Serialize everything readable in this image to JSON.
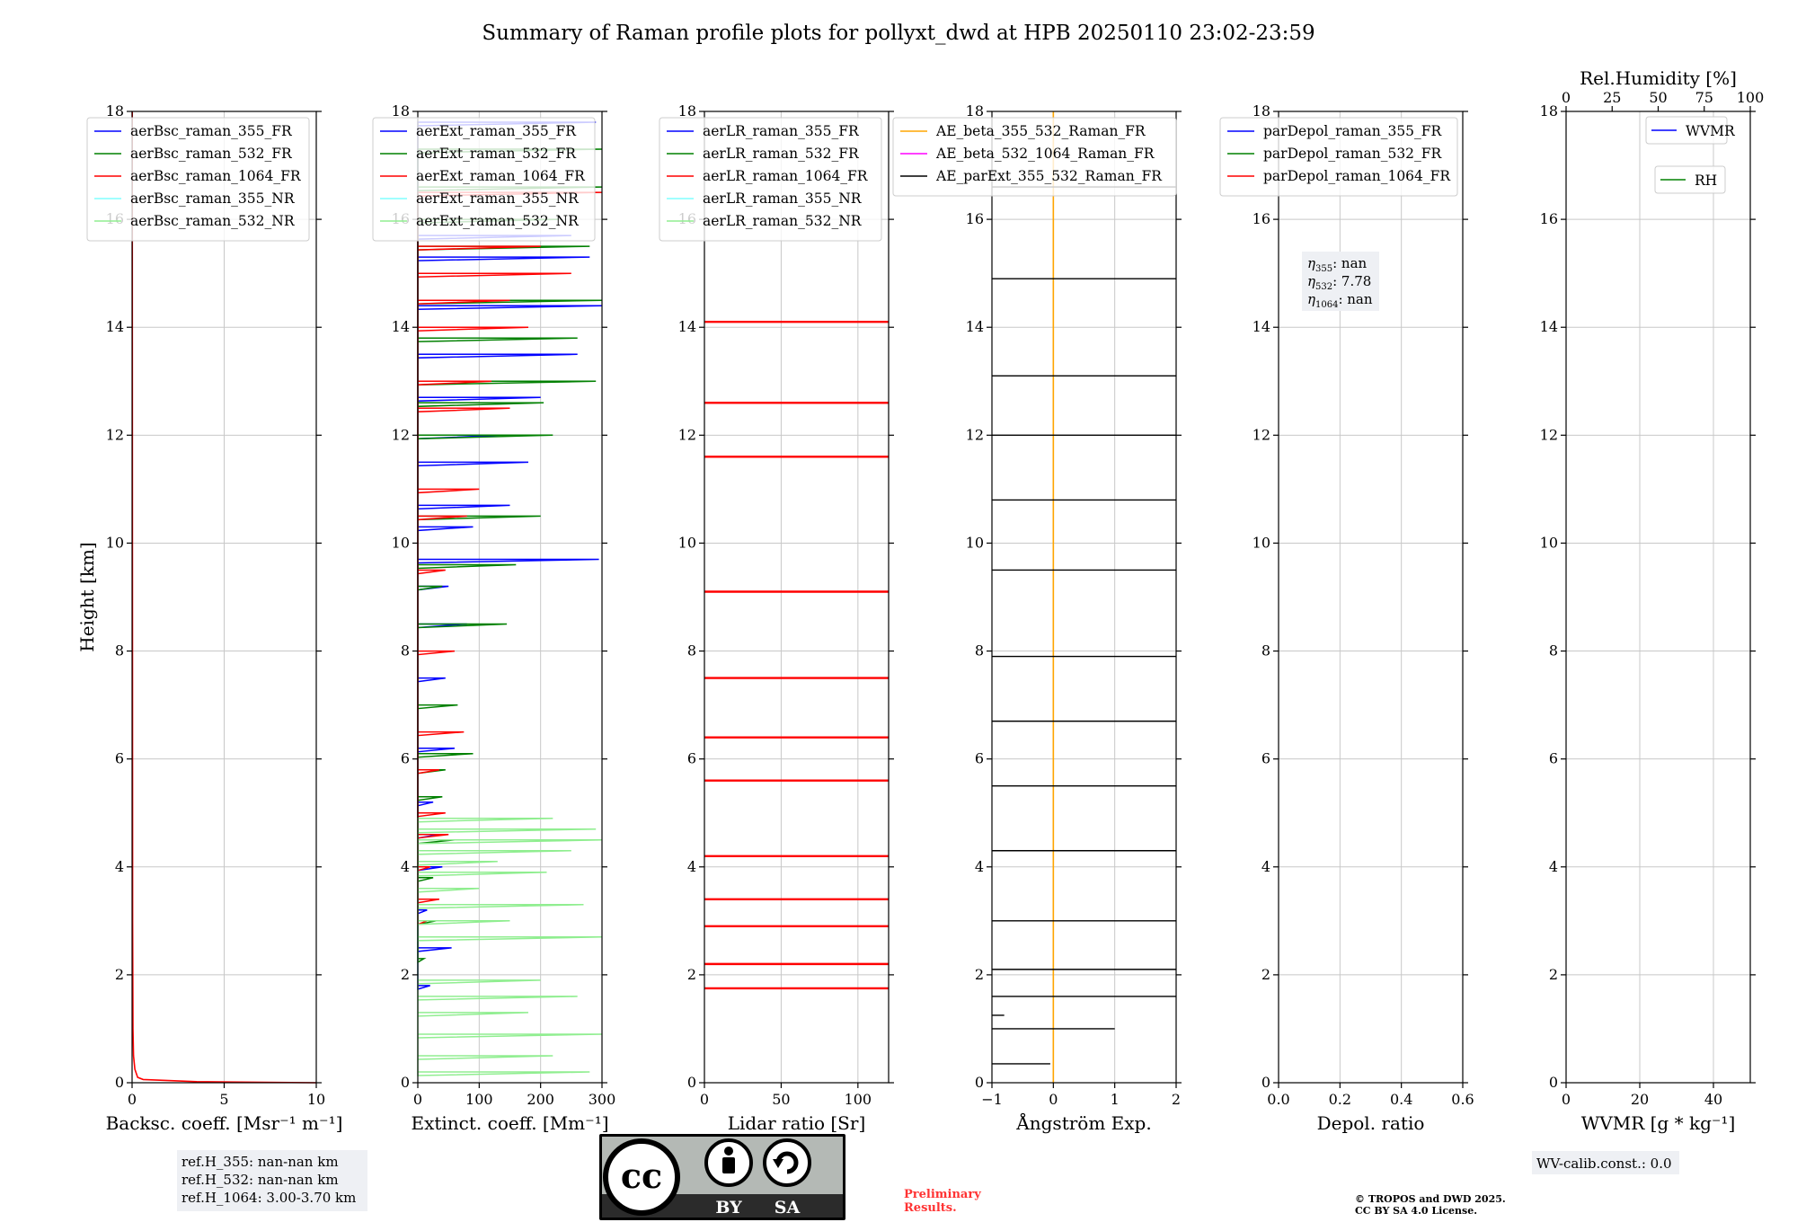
{
  "title": "Summary of Raman profile plots for pollyxt_dwd at HPB 20250110 23:02-23:59",
  "chart_data": [
    {
      "type": "line",
      "xlabel": "Backsc. coeff. [Msr⁻¹ m⁻¹]",
      "ylabel": "Height [km]",
      "xlim": [
        0,
        10
      ],
      "ylim": [
        0,
        18
      ],
      "xticks": [
        "0",
        "5",
        "10"
      ],
      "yticks": [
        "0",
        "2",
        "4",
        "6",
        "8",
        "10",
        "12",
        "14",
        "16",
        "18"
      ],
      "grid": true,
      "legend": "top-left",
      "series": [
        {
          "name": "aerBsc_raman_355_FR",
          "color": "#0000ff"
        },
        {
          "name": "aerBsc_raman_532_FR",
          "color": "#008000"
        },
        {
          "name": "aerBsc_raman_1064_FR",
          "color": "#ff0000",
          "x": [
            10,
            3.5,
            0.6,
            0.3,
            0.15,
            0.08,
            0.05,
            0.03,
            0.02,
            0.01
          ],
          "y": [
            0,
            0.02,
            0.06,
            0.1,
            0.25,
            0.5,
            1.0,
            3.0,
            10.0,
            18.0
          ]
        },
        {
          "name": "aerBsc_raman_355_NR",
          "color": "#80ffff"
        },
        {
          "name": "aerBsc_raman_532_NR",
          "color": "#90ee90"
        }
      ]
    },
    {
      "type": "line",
      "xlabel": "Extinct. coeff. [Mm⁻¹]",
      "xlim": [
        0,
        300
      ],
      "ylim": [
        0,
        18
      ],
      "xticks": [
        "0",
        "100",
        "200",
        "300"
      ],
      "yticks": [
        "0",
        "2",
        "4",
        "6",
        "8",
        "10",
        "12",
        "14",
        "16",
        "18"
      ],
      "grid": true,
      "legend": "top-left",
      "series": [
        {
          "name": "aerExt_raman_355_FR",
          "color": "#0000ff",
          "x": [
            20,
            55,
            15,
            40,
            35,
            25,
            60,
            45,
            80,
            50,
            295,
            90,
            150,
            180,
            140,
            200,
            260,
            300,
            280,
            250,
            290
          ],
          "y": [
            1.8,
            2.5,
            3.2,
            4.0,
            4.6,
            5.2,
            6.2,
            7.5,
            8.5,
            9.2,
            9.7,
            10.3,
            10.7,
            11.5,
            12.0,
            12.7,
            13.5,
            14.4,
            15.3,
            15.7,
            17.8
          ]
        },
        {
          "name": "aerExt_raman_532_FR",
          "color": "#008000",
          "x": [
            10,
            30,
            25,
            60,
            40,
            45,
            90,
            65,
            145,
            40,
            160,
            200,
            220,
            205,
            290,
            260,
            300,
            280,
            230,
            300,
            300
          ],
          "y": [
            2.3,
            3.0,
            3.8,
            4.5,
            5.3,
            5.8,
            6.1,
            7.0,
            8.5,
            9.2,
            9.6,
            10.5,
            12.0,
            12.6,
            13.0,
            13.8,
            14.5,
            15.5,
            16.0,
            16.6,
            17.3
          ]
        },
        {
          "name": "aerExt_raman_1064_FR",
          "color": "#ff0000",
          "x": [
            15,
            35,
            20,
            50,
            45,
            35,
            75,
            60,
            45,
            80,
            100,
            150,
            120,
            180,
            150,
            250,
            200,
            300
          ],
          "y": [
            3.0,
            3.4,
            4.0,
            4.6,
            5.0,
            5.8,
            6.5,
            8.0,
            9.5,
            10.5,
            11.0,
            12.5,
            13.0,
            14.0,
            14.5,
            15.0,
            15.5,
            16.5
          ]
        },
        {
          "name": "aerExt_raman_355_NR",
          "color": "#80ffff"
        },
        {
          "name": "aerExt_raman_532_NR",
          "color": "#90ee90",
          "x": [
            280,
            220,
            300,
            180,
            260,
            200,
            300,
            150,
            270,
            100,
            210,
            130,
            250,
            300,
            290,
            220
          ],
          "y": [
            0.2,
            0.5,
            0.9,
            1.3,
            1.6,
            1.9,
            2.7,
            3.0,
            3.3,
            3.6,
            3.9,
            4.1,
            4.3,
            4.5,
            4.7,
            4.9
          ]
        }
      ]
    },
    {
      "type": "line",
      "xlabel": "Lidar ratio [Sr]",
      "xlim": [
        0,
        120
      ],
      "ylim": [
        0,
        18
      ],
      "xticks": [
        "0",
        "50",
        "100"
      ],
      "yticks": [
        "0",
        "2",
        "4",
        "6",
        "8",
        "10",
        "12",
        "14",
        "16",
        "18"
      ],
      "grid": true,
      "legend": "top-left",
      "series": [
        {
          "name": "aerLR_raman_355_FR",
          "color": "#0000ff"
        },
        {
          "name": "aerLR_raman_532_FR",
          "color": "#008000"
        },
        {
          "name": "aerLR_raman_1064_FR",
          "color": "#ff0000",
          "x": [
            120,
            120,
            120,
            120,
            120,
            120,
            120,
            120,
            120,
            120,
            120,
            120
          ],
          "y": [
            1.75,
            2.2,
            2.9,
            3.4,
            4.2,
            5.6,
            6.4,
            7.5,
            9.1,
            11.6,
            12.6,
            14.1
          ]
        },
        {
          "name": "aerLR_raman_355_NR",
          "color": "#80ffff"
        },
        {
          "name": "aerLR_raman_532_NR",
          "color": "#90ee90"
        }
      ]
    },
    {
      "type": "line",
      "xlabel": "Ångström Exp.",
      "xlim": [
        -1,
        2
      ],
      "ylim": [
        0,
        18
      ],
      "xticks": [
        "−1",
        "0",
        "1",
        "2"
      ],
      "yticks": [
        "0",
        "2",
        "4",
        "6",
        "8",
        "10",
        "12",
        "14",
        "16",
        "18"
      ],
      "grid": true,
      "legend": "top-right",
      "series": [
        {
          "name": "AE_beta_355_532_Raman_FR",
          "color": "#ffa500",
          "x": [
            0,
            0
          ],
          "y": [
            0,
            18
          ]
        },
        {
          "name": "AE_beta_532_1064_Raman_FR",
          "color": "#ff00ff"
        },
        {
          "name": "AE_parExt_355_532_Raman_FR",
          "color": "#000000",
          "x": [
            -0.05,
            1.0,
            -0.8,
            2.0,
            -1.0,
            2.0,
            -1.0,
            2.0,
            -1.0,
            2.0,
            -1.0,
            2.0,
            -1.0,
            2.0,
            -1.0,
            2.0,
            -1.0,
            2.0,
            -1.0,
            2.0,
            -1.0,
            2.0,
            -1.0,
            2.0,
            -1.0,
            2.0,
            -1.0,
            2.0
          ],
          "y": [
            0.35,
            1.0,
            1.25,
            1.6,
            1.8,
            2.1,
            2.4,
            3.0,
            3.5,
            4.3,
            5.0,
            5.5,
            6.0,
            6.7,
            7.3,
            7.9,
            8.7,
            9.5,
            10.1,
            10.8,
            11.3,
            12.0,
            12.5,
            13.1,
            13.8,
            14.9,
            16.2,
            16.6
          ]
        }
      ]
    },
    {
      "type": "line",
      "xlabel": "Depol. ratio",
      "xlim": [
        0,
        0.6
      ],
      "ylim": [
        0,
        18
      ],
      "xticks": [
        "0.0",
        "0.2",
        "0.4",
        "0.6"
      ],
      "yticks": [
        "0",
        "2",
        "4",
        "6",
        "8",
        "10",
        "12",
        "14",
        "16",
        "18"
      ],
      "grid": true,
      "legend": "top-left",
      "series": [
        {
          "name": "parDepol_raman_355_FR",
          "color": "#0000ff"
        },
        {
          "name": "parDepol_raman_532_FR",
          "color": "#008000"
        },
        {
          "name": "parDepol_raman_1064_FR",
          "color": "#ff0000"
        }
      ]
    },
    {
      "type": "line",
      "xlabel": "WVMR [g * kg⁻¹]",
      "xlabel2": "Rel.Humidity [%]",
      "xlim": [
        0,
        50
      ],
      "xlim2": [
        0,
        100
      ],
      "ylim": [
        0,
        18
      ],
      "xticks": [
        "0",
        "20",
        "40"
      ],
      "xticks2": [
        "0",
        "25",
        "50",
        "75",
        "100"
      ],
      "yticks": [
        "0",
        "2",
        "4",
        "6",
        "8",
        "10",
        "12",
        "14",
        "16",
        "18"
      ],
      "grid": true,
      "legend": "top-right",
      "series": [
        {
          "name": "WVMR",
          "color": "#0000ff"
        },
        {
          "name": "RH",
          "color": "#008000"
        }
      ]
    }
  ],
  "annotations": {
    "eta": {
      "l355": ": nan",
      "l532": ": 7.78",
      "l1064": ": nan",
      "sub355": "355",
      "sub532": "532",
      "sub1064": "1064",
      "sym": "η"
    },
    "ref": {
      "h355": "ref.H_355: nan-nan km",
      "h532": "ref.H_532: nan-nan km",
      "h1064": "ref.H_1064: 3.00-3.70 km"
    },
    "preliminary": {
      "line1": "Preliminary",
      "line2": "Results.",
      "color": "#ff3333"
    },
    "copyright": {
      "line1": "© TROPOS and DWD 2025.",
      "line2": "CC BY SA 4.0 License."
    },
    "wv_calib": "WV-calib.const.: 0.0",
    "license_badge": {
      "by": "BY",
      "sa": "SA",
      "cc": "cc"
    }
  }
}
